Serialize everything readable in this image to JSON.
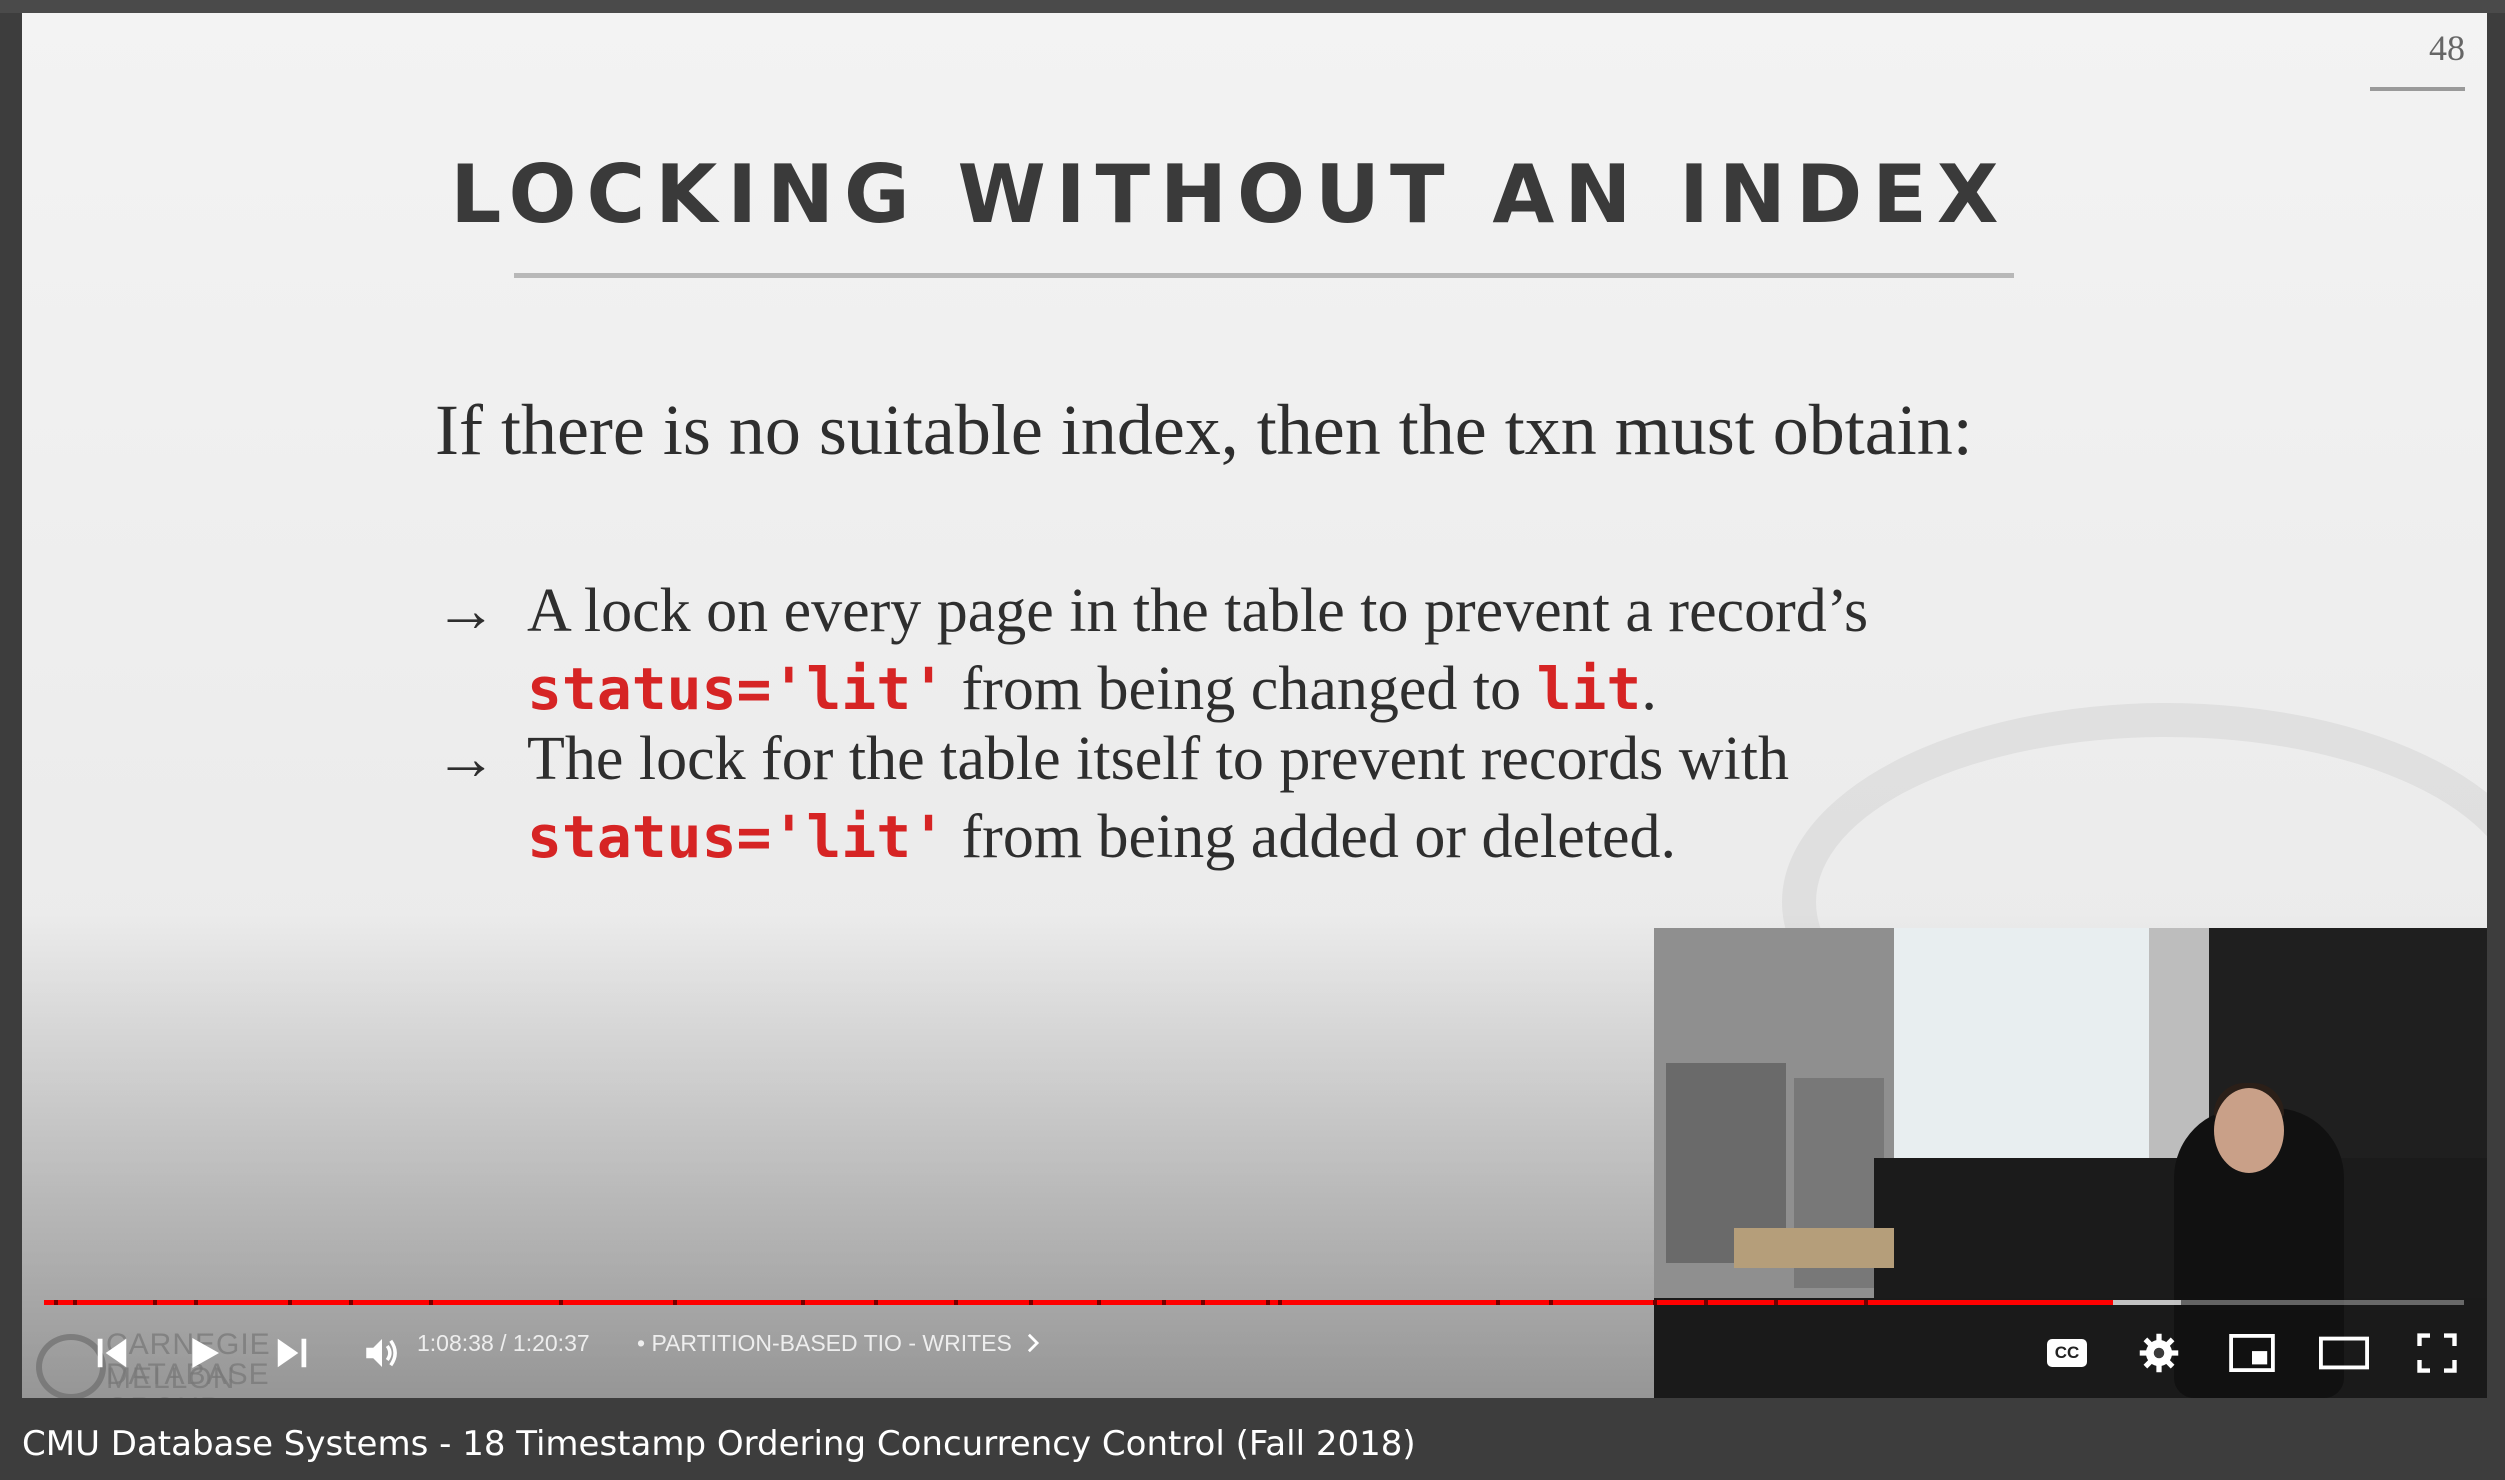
{
  "slide": {
    "page_number": "48",
    "title": "LOCKING WITHOUT AN INDEX",
    "body": "If there is no suitable index, then the txn must obtain:",
    "bullets": [
      {
        "arrow": "→",
        "line1": "A lock on every page in the table to prevent a record’s",
        "code1": "status='lit'",
        "mid": " from being changed to ",
        "code2": "lit",
        "tail": "."
      },
      {
        "arrow": "→",
        "line1": "The lock for the table itself to prevent records with",
        "code1": "status='lit'",
        "tail": " from being added or deleted."
      }
    ]
  },
  "watermark": {
    "line1": "CARNEGIE MELLON",
    "line2": "DATABASE GROUP"
  },
  "player": {
    "current_time": "1:08:38",
    "duration": "1:20:37",
    "time_separator": " / ",
    "chapter_bullet": "•",
    "chapter_title": "PARTITION-BASED TIO - WRITES",
    "progress_fraction": 0.855,
    "buffer_fraction": 0.883,
    "accent_color": "#ff0000",
    "icons": [
      "previous-icon",
      "play-icon",
      "next-icon",
      "volume-icon",
      "chevron-right-icon",
      "captions-icon",
      "settings-icon",
      "miniplayer-icon",
      "theater-icon",
      "fullscreen-icon"
    ],
    "cc_label": "CC"
  },
  "video_title": "CMU Database Systems - 18 Timestamp Ordering Concurrency Control (Fall 2018)"
}
